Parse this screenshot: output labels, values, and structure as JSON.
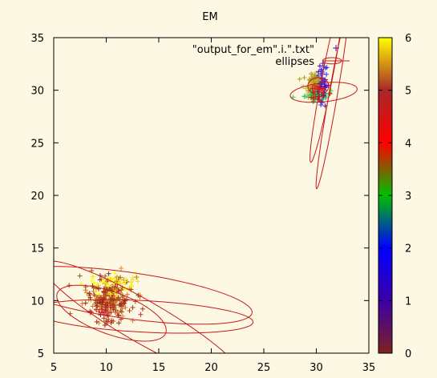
{
  "chart_data": {
    "type": "scatter",
    "title": "EM",
    "xlabel": "",
    "ylabel": "",
    "xlim": [
      5,
      35
    ],
    "ylim": [
      5,
      35
    ],
    "xticks": [
      "5",
      "10",
      "15",
      "20",
      "25",
      "30",
      "35"
    ],
    "yticks": [
      "5",
      "10",
      "15",
      "20",
      "25",
      "30",
      "35"
    ],
    "grid": false,
    "legend_position": "top-right",
    "legend": [
      "\"output_for_em\".i.\".txt\"",
      "ellipses"
    ],
    "colorbar": {
      "range": [
        0,
        6
      ],
      "ticks": [
        "0",
        "1",
        "2",
        "3",
        "4",
        "5",
        "6"
      ],
      "palette": [
        "#7f2020",
        "#3b00a8",
        "#0000ff",
        "#00c000",
        "#ff0000",
        "#a8282a",
        "#ffff00"
      ]
    },
    "clusters": [
      {
        "cx": 10.3,
        "cy": 10.3,
        "sx": 1.1,
        "sy": 1.0,
        "n": 230,
        "colors": [
          "#a05a14",
          "#8b2a10",
          "#c87828",
          "#b8401a",
          "#9a3a20",
          "#d09030"
        ]
      },
      {
        "cx": 10.2,
        "cy": 11.6,
        "sx": 1.2,
        "sy": 0.6,
        "n": 45,
        "colors": [
          "#ffff00",
          "#f0e020"
        ]
      },
      {
        "cx": 10.0,
        "cy": 8.9,
        "sx": 1.0,
        "sy": 0.6,
        "n": 30,
        "colors": [
          "#d02828",
          "#b82020"
        ]
      },
      {
        "cx": 29.7,
        "cy": 30.6,
        "sx": 0.45,
        "sy": 0.45,
        "n": 90,
        "colors": [
          "#a0a020",
          "#c8b838",
          "#b89020"
        ]
      },
      {
        "cx": 30.0,
        "cy": 29.6,
        "sx": 0.55,
        "sy": 0.3,
        "n": 60,
        "colors": [
          "#10c040",
          "#20a070",
          "#30d050"
        ]
      },
      {
        "cx": 30.5,
        "cy": 30.6,
        "sx": 0.3,
        "sy": 1.0,
        "n": 45,
        "colors": [
          "#2020ff",
          "#5000b0",
          "#4030e0"
        ]
      },
      {
        "cx": 30.2,
        "cy": 29.8,
        "sx": 0.4,
        "sy": 0.5,
        "n": 25,
        "colors": [
          "#c81818",
          "#e02020"
        ]
      }
    ],
    "ellipses": [
      {
        "cx": 12.0,
        "cy": 10.5,
        "rx": 12.0,
        "ry": 2.2,
        "angle": -8
      },
      {
        "cx": 13.5,
        "cy": 8.5,
        "rx": 10.5,
        "ry": 1.5,
        "angle": -3
      },
      {
        "cx": 13.5,
        "cy": 8.0,
        "rx": 11.0,
        "ry": 2.0,
        "angle": -30
      },
      {
        "cx": 10.5,
        "cy": 8.8,
        "rx": 5.5,
        "ry": 2.0,
        "angle": -20
      },
      {
        "cx": 31.0,
        "cy": 31.0,
        "rx": 8.0,
        "ry": 0.5,
        "angle": 79
      },
      {
        "cx": 31.5,
        "cy": 29.0,
        "rx": 8.5,
        "ry": 0.4,
        "angle": 80
      },
      {
        "cx": 30.7,
        "cy": 29.8,
        "rx": 3.2,
        "ry": 0.9,
        "angle": 6
      },
      {
        "cx": 31.5,
        "cy": 32.8,
        "rx": 0.9,
        "ry": 0.3,
        "angle": 0
      },
      {
        "cx": 30.2,
        "cy": 30.4,
        "rx": 1.0,
        "ry": 0.8,
        "angle": 0
      }
    ]
  }
}
